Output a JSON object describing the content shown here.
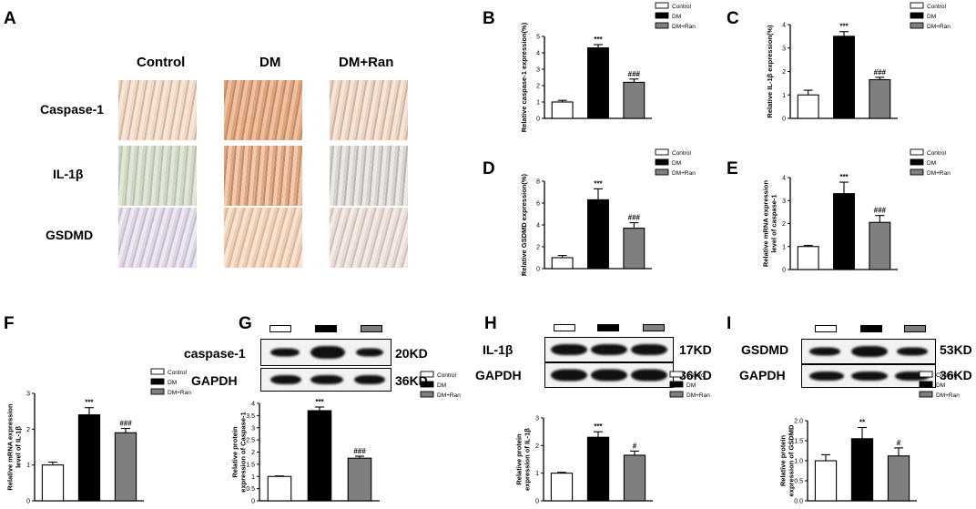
{
  "panels": {
    "A": "A",
    "B": "B",
    "C": "C",
    "D": "D",
    "E": "E",
    "F": "F",
    "G": "G",
    "H": "H",
    "I": "I"
  },
  "histology": {
    "columns": [
      "Control",
      "DM",
      "DM+Ran"
    ],
    "rows": [
      "Caspase-1",
      "IL-1β",
      "GSDMD"
    ]
  },
  "legend_items": [
    "Control",
    "DM",
    "DM+Ran"
  ],
  "colors": {
    "control": "#ffffff",
    "dm": "#000000",
    "dmran": "#7f7f7f"
  },
  "blots": {
    "G": {
      "target": "caspase-1",
      "target_kd": "20KD",
      "ref": "GAPDH",
      "ref_kd": "36KD"
    },
    "H": {
      "target": "IL-1β",
      "target_kd": "17KD",
      "ref": "GAPDH",
      "ref_kd": "36KD"
    },
    "I": {
      "target": "GSDMD",
      "target_kd": "53KD",
      "ref": "GAPDH",
      "ref_kd": "36KD"
    }
  },
  "chart_data": [
    {
      "id": "B",
      "type": "bar",
      "categories": [
        "Control",
        "DM",
        "DM+Ran"
      ],
      "values": [
        1.0,
        4.3,
        2.2
      ],
      "errors": [
        0.1,
        0.2,
        0.2
      ],
      "annotations": [
        "",
        "***",
        "###"
      ],
      "ylabel": "Relative caspase-1 expression(%)",
      "ylim": [
        0,
        5
      ],
      "yticks": [
        0,
        1,
        2,
        3,
        4,
        5
      ],
      "ytick_labels": [
        "0",
        "1",
        "2",
        "3",
        "4",
        "5"
      ]
    },
    {
      "id": "C",
      "type": "bar",
      "categories": [
        "Control",
        "DM",
        "DM+Ran"
      ],
      "values": [
        1.0,
        3.5,
        1.65
      ],
      "errors": [
        0.2,
        0.2,
        0.1
      ],
      "annotations": [
        "",
        "***",
        "###"
      ],
      "ylabel": "Relative IL-1β expression(%)",
      "ylim": [
        0,
        4
      ],
      "yticks": [
        0,
        1,
        2,
        3,
        4
      ],
      "ytick_labels": [
        "0",
        "1",
        "2",
        "3",
        "4"
      ]
    },
    {
      "id": "D",
      "type": "bar",
      "categories": [
        "Control",
        "DM",
        "DM+Ran"
      ],
      "values": [
        1.0,
        6.3,
        3.7
      ],
      "errors": [
        0.2,
        1.0,
        0.5
      ],
      "annotations": [
        "",
        "***",
        "###"
      ],
      "ylabel": "Relative GSDMD expression(%)",
      "ylim": [
        0,
        8
      ],
      "yticks": [
        0,
        2,
        4,
        6,
        8
      ],
      "ytick_labels": [
        "0",
        "2",
        "4",
        "6",
        "8"
      ]
    },
    {
      "id": "E",
      "type": "bar",
      "categories": [
        "Control",
        "DM",
        "DM+Ran"
      ],
      "values": [
        1.0,
        3.3,
        2.05
      ],
      "errors": [
        0.05,
        0.5,
        0.3
      ],
      "annotations": [
        "",
        "***",
        "###"
      ],
      "ylabel": "Relative mRNA expression level of caspase-1",
      "ylim": [
        0,
        4
      ],
      "yticks": [
        0,
        1,
        2,
        3,
        4
      ],
      "ytick_labels": [
        "0",
        "1",
        "2",
        "3",
        "4"
      ]
    },
    {
      "id": "F",
      "type": "bar",
      "categories": [
        "Control",
        "DM",
        "DM+Ran"
      ],
      "values": [
        1.0,
        2.4,
        1.9
      ],
      "errors": [
        0.08,
        0.2,
        0.12
      ],
      "annotations": [
        "",
        "***",
        "###"
      ],
      "ylabel": "Relative mRNA expression level of IL-1β",
      "ylim": [
        0,
        3
      ],
      "yticks": [
        0,
        1,
        2,
        3
      ],
      "ytick_labels": [
        "0",
        "1",
        "2",
        "3"
      ]
    },
    {
      "id": "G",
      "type": "bar",
      "categories": [
        "Control",
        "DM",
        "DM+Ran"
      ],
      "values": [
        1.0,
        3.7,
        1.75
      ],
      "errors": [
        0.02,
        0.15,
        0.08
      ],
      "annotations": [
        "",
        "***",
        "###"
      ],
      "ylabel": "Relative protein expression of Caspase-1",
      "ylim": [
        0,
        4
      ],
      "yticks": [
        0,
        0.5,
        1,
        1.5,
        2,
        2.5,
        3,
        3.5,
        4
      ],
      "ytick_labels": [
        "0",
        "0.5",
        "1",
        "1.5",
        "2",
        "2.5",
        "3",
        "3.5",
        "4"
      ]
    },
    {
      "id": "H",
      "type": "bar",
      "categories": [
        "Control",
        "DM",
        "DM+Ran"
      ],
      "values": [
        1.0,
        2.3,
        1.65
      ],
      "errors": [
        0.03,
        0.2,
        0.15
      ],
      "annotations": [
        "",
        "***",
        "#"
      ],
      "ylabel": "Relative protein expression of IL-1β",
      "ylim": [
        0,
        3
      ],
      "yticks": [
        0,
        1,
        2,
        3
      ],
      "ytick_labels": [
        "0",
        "1",
        "2",
        "3"
      ]
    },
    {
      "id": "I",
      "type": "bar",
      "categories": [
        "Control",
        "DM",
        "DM+Ran"
      ],
      "values": [
        1.0,
        1.55,
        1.12
      ],
      "errors": [
        0.15,
        0.28,
        0.2
      ],
      "annotations": [
        "",
        "**",
        "#"
      ],
      "ylabel": "Relative protein expression of GSDMD",
      "ylim": [
        0,
        2
      ],
      "yticks": [
        0,
        0.5,
        1,
        1.5,
        2
      ],
      "ytick_labels": [
        "0.0",
        "0.5",
        "1.0",
        "1.5",
        "2.0"
      ]
    }
  ]
}
